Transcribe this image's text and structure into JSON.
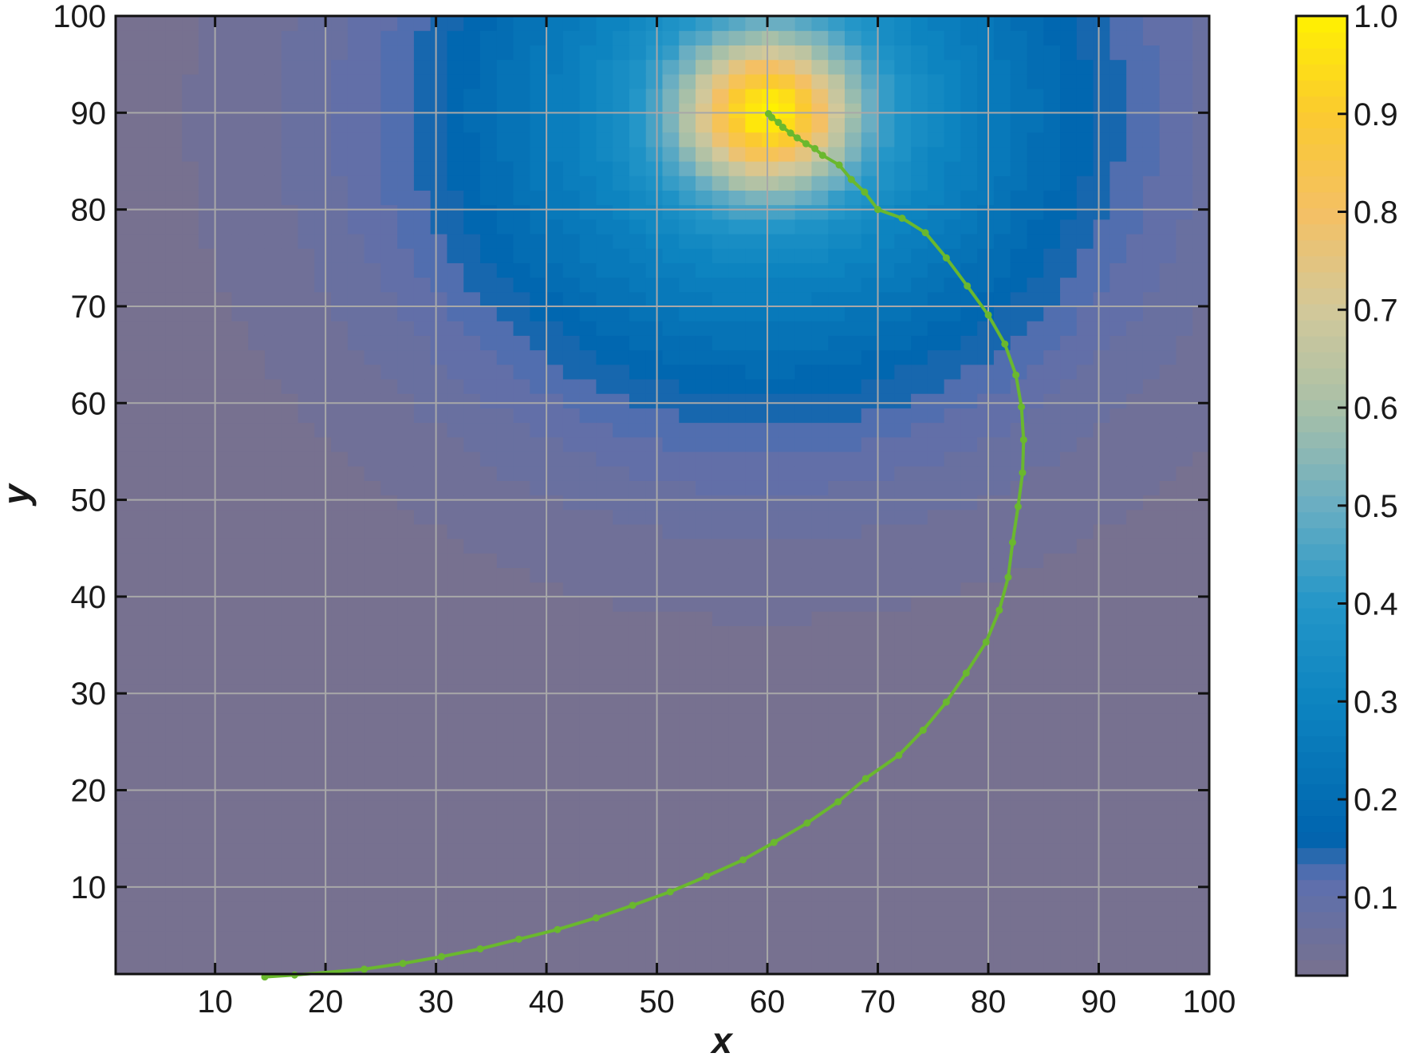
{
  "chart_data": {
    "type": "heatmap",
    "title": "",
    "xlabel": "x",
    "ylabel": "y",
    "xlim": [
      1,
      100
    ],
    "ylim": [
      1,
      100
    ],
    "x_ticks": [
      10,
      20,
      30,
      40,
      50,
      60,
      70,
      80,
      90,
      100
    ],
    "y_ticks": [
      10,
      20,
      30,
      40,
      50,
      60,
      70,
      80,
      90,
      100
    ],
    "grid": true,
    "field": {
      "description": "Gaussian-like scalar field peaking at the source",
      "peak": {
        "x": 60,
        "y": 90,
        "value": 1.0
      },
      "background_value": 0.02
    },
    "colorbar": {
      "range": [
        0.02,
        1.0
      ],
      "ticks": [
        0.1,
        0.2,
        0.3,
        0.4,
        0.5,
        0.6,
        0.7,
        0.8,
        0.9,
        1.0
      ],
      "tick_labels": [
        "0.1",
        "0.2",
        "0.3",
        "0.4",
        "0.5",
        "0.6",
        "0.7",
        "0.8",
        "0.9",
        "1.0"
      ],
      "colors": [
        {
          "v": 0.02,
          "c": "#78718e"
        },
        {
          "v": 0.12,
          "c": "#5c6faf"
        },
        {
          "v": 0.16,
          "c": "#0064ae"
        },
        {
          "v": 0.3,
          "c": "#0d84c0"
        },
        {
          "v": 0.4,
          "c": "#2496c8"
        },
        {
          "v": 0.5,
          "c": "#6aaec2"
        },
        {
          "v": 0.6,
          "c": "#a8c0a8"
        },
        {
          "v": 0.7,
          "c": "#d2c89a"
        },
        {
          "v": 0.8,
          "c": "#f4c064"
        },
        {
          "v": 0.9,
          "c": "#fbca30"
        },
        {
          "v": 1.0,
          "c": "#fff100"
        }
      ]
    },
    "series": [
      {
        "type": "line",
        "color": "#6ab82e",
        "x": [
          14.5,
          17.2,
          23.5,
          27.0,
          30.5,
          34.0,
          37.5,
          41.0,
          44.5,
          47.8,
          51.2,
          54.5,
          57.8,
          60.6,
          63.6,
          66.4,
          68.9,
          71.9,
          74.1,
          76.2,
          78.0,
          79.8,
          81.0,
          81.8,
          82.2,
          82.7,
          83.1,
          83.2,
          83.0,
          82.5,
          81.5,
          80.0,
          78.1,
          76.2,
          74.3,
          72.2,
          70.0,
          68.8,
          67.6,
          66.5,
          65.0,
          64.3,
          63.5,
          62.7,
          62.1,
          61.4,
          61.0,
          60.4,
          60.1
        ],
        "y": [
          0.7,
          0.9,
          1.5,
          2.1,
          2.8,
          3.6,
          4.6,
          5.6,
          6.8,
          8.1,
          9.5,
          11.1,
          12.8,
          14.6,
          16.6,
          18.8,
          21.2,
          23.6,
          26.2,
          29.1,
          32.1,
          35.3,
          38.6,
          42.0,
          45.6,
          49.3,
          52.8,
          56.2,
          59.6,
          62.9,
          66.1,
          69.1,
          72.1,
          75.0,
          77.6,
          79.1,
          80.0,
          81.8,
          83.1,
          84.6,
          85.6,
          86.3,
          86.8,
          87.4,
          87.9,
          88.5,
          89.0,
          89.5,
          89.9
        ]
      }
    ]
  }
}
